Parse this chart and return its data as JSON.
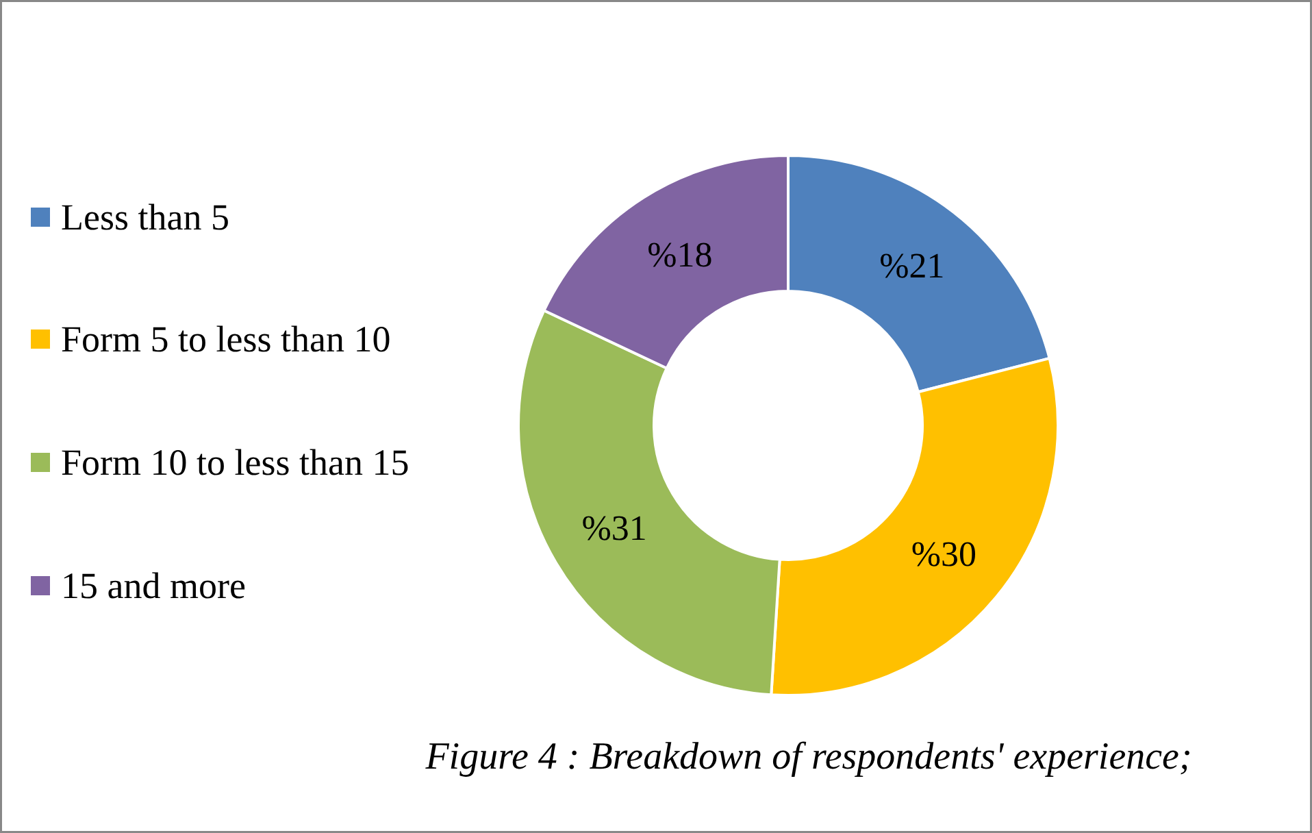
{
  "chart_data": {
    "type": "donut",
    "title": "Figure 4 : Breakdown of respondents' experience;",
    "categories": [
      "Less than 5",
      "Form 5 to less than 10",
      "Form 10 to less than 15",
      "15 and more"
    ],
    "values": [
      21,
      30,
      31,
      18
    ],
    "colors": [
      "#4f81bd",
      "#ffc000",
      "#9bbb59",
      "#8064a2"
    ],
    "value_labels": [
      "%21",
      "%30",
      "%31",
      "%18"
    ],
    "legend": "left"
  }
}
